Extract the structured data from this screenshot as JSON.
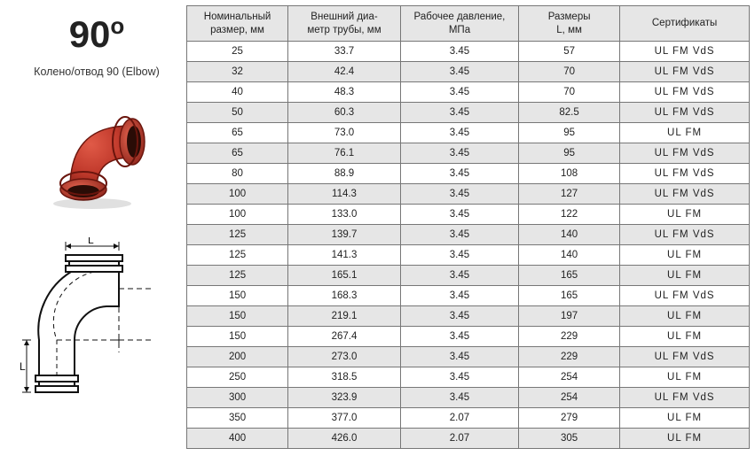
{
  "product": {
    "title_deg_number": "90",
    "title_deg_symbol": "o",
    "subtitle": "Колено/отвод  90 (Elbow)",
    "photo_color": "#c13a2c",
    "photo_shadow": "#7a1d14"
  },
  "diagram": {
    "dim_horizontal": "L",
    "dim_vertical": "L",
    "stroke": "#111111",
    "dash_stroke": "#111111"
  },
  "table": {
    "columns": [
      "Номинальный размер, мм",
      "Внешний диа-метр трубы, мм",
      "Рабочее давление, МПа",
      "Размеры L, мм",
      "Сертификаты"
    ],
    "col_widths_pct": [
      18,
      20,
      21,
      18,
      23
    ],
    "header_bg": "#e6e6e6",
    "body_bg": "#ffffff",
    "shaded_bg": "#e6e6e6",
    "border_color": "#777777",
    "text_color": "#222222",
    "font_size_pt": 9,
    "rows": [
      {
        "values": [
          "25",
          "33.7",
          "3.45",
          "57",
          "UL FM VdS"
        ],
        "shaded": false
      },
      {
        "values": [
          "32",
          "42.4",
          "3.45",
          "70",
          "UL FM VdS"
        ],
        "shaded": true
      },
      {
        "values": [
          "40",
          "48.3",
          "3.45",
          "70",
          "UL FM VdS"
        ],
        "shaded": false
      },
      {
        "values": [
          "50",
          "60.3",
          "3.45",
          "82.5",
          "UL FM VdS"
        ],
        "shaded": true
      },
      {
        "values": [
          "65",
          "73.0",
          "3.45",
          "95",
          "UL FM"
        ],
        "shaded": false
      },
      {
        "values": [
          "65",
          "76.1",
          "3.45",
          "95",
          "UL FM VdS"
        ],
        "shaded": true
      },
      {
        "values": [
          "80",
          "88.9",
          "3.45",
          "108",
          "UL FM VdS"
        ],
        "shaded": false
      },
      {
        "values": [
          "100",
          "114.3",
          "3.45",
          "127",
          "UL FM VdS"
        ],
        "shaded": true
      },
      {
        "values": [
          "100",
          "133.0",
          "3.45",
          "122",
          "UL FM"
        ],
        "shaded": false
      },
      {
        "values": [
          "125",
          "139.7",
          "3.45",
          "140",
          "UL FM VdS"
        ],
        "shaded": true
      },
      {
        "values": [
          "125",
          "141.3",
          "3.45",
          "140",
          "UL FM"
        ],
        "shaded": false
      },
      {
        "values": [
          "125",
          "165.1",
          "3.45",
          "165",
          "UL FM"
        ],
        "shaded": true
      },
      {
        "values": [
          "150",
          "168.3",
          "3.45",
          "165",
          "UL FM VdS"
        ],
        "shaded": false
      },
      {
        "values": [
          "150",
          "219.1",
          "3.45",
          "197",
          "UL FM"
        ],
        "shaded": true
      },
      {
        "values": [
          "150",
          "267.4",
          "3.45",
          "229",
          "UL FM"
        ],
        "shaded": false
      },
      {
        "values": [
          "200",
          "273.0",
          "3.45",
          "229",
          "UL FM VdS"
        ],
        "shaded": true
      },
      {
        "values": [
          "250",
          "318.5",
          "3.45",
          "254",
          "UL FM"
        ],
        "shaded": false
      },
      {
        "values": [
          "300",
          "323.9",
          "3.45",
          "254",
          "UL FM VdS"
        ],
        "shaded": true
      },
      {
        "values": [
          "350",
          "377.0",
          "2.07",
          "279",
          "UL FM"
        ],
        "shaded": false
      },
      {
        "values": [
          "400",
          "426.0",
          "2.07",
          "305",
          "UL FM"
        ],
        "shaded": true
      }
    ]
  }
}
